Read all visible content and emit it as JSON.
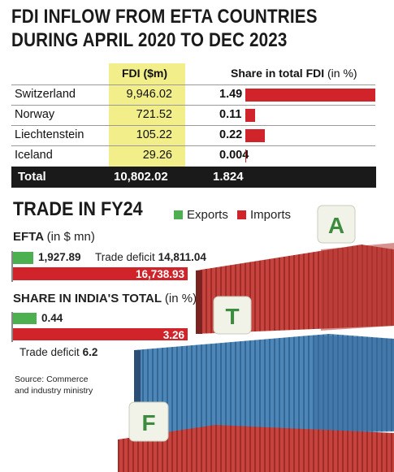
{
  "title_line1": "FDI INFLOW FROM EFTA COUNTRIES",
  "title_line2": "DURING APRIL 2020 TO DEC 2023",
  "table": {
    "col_fdi": "FDI ($m)",
    "col_share": "Share in total FDI",
    "col_share_unit": "(in %)",
    "rows": [
      {
        "country": "Switzerland",
        "fdi": "9,946.02",
        "share": "1.49"
      },
      {
        "country": "Norway",
        "fdi": "721.52",
        "share": "0.11"
      },
      {
        "country": "Liechtenstein",
        "fdi": "105.22",
        "share": "0.22"
      },
      {
        "country": "Iceland",
        "fdi": "29.26",
        "share": "0.004"
      }
    ],
    "total": {
      "label": "Total",
      "fdi": "10,802.02",
      "share": "1.824"
    }
  },
  "trade": {
    "heading": "TRADE IN FY24",
    "legend_exports": "Exports",
    "legend_imports": "Imports",
    "efta_label": "EFTA",
    "efta_unit": "(in $ mn)",
    "efta_exports": "1,927.89",
    "efta_imports": "16,738.93",
    "efta_deficit_label": "Trade deficit",
    "efta_deficit_value": "14,811.04",
    "share_label": "SHARE IN INDIA'S TOTAL",
    "share_unit": "(in %)",
    "share_exports": "0.44",
    "share_imports": "3.26",
    "share_deficit_label": "Trade deficit",
    "share_deficit_value": "6.2"
  },
  "source_line1": "Source: Commerce",
  "source_line2": "and industry ministry",
  "photo_letters": {
    "top": "A",
    "middle": "T",
    "bottom": "F"
  },
  "colors": {
    "exports": "#4caf50",
    "imports": "#d0232a",
    "fdi_highlight": "#f2ef8a",
    "total_bg": "#1a1a1a"
  },
  "chart_data": [
    {
      "type": "table",
      "title": "FDI INFLOW FROM EFTA COUNTRIES DURING APRIL 2020 TO DEC 2023",
      "columns": [
        "FDI ($m)",
        "Share in total FDI (in %)"
      ],
      "categories": [
        "Switzerland",
        "Norway",
        "Liechtenstein",
        "Iceland",
        "Total"
      ],
      "series": [
        {
          "name": "FDI ($m)",
          "values": [
            9946.02,
            721.52,
            105.22,
            29.26,
            10802.02
          ]
        },
        {
          "name": "Share in total FDI (in %)",
          "values": [
            1.49,
            0.11,
            0.22,
            0.004,
            1.824
          ]
        }
      ]
    },
    {
      "type": "bar",
      "title": "EFTA (in $ mn)",
      "categories": [
        "EFTA"
      ],
      "series": [
        {
          "name": "Exports",
          "values": [
            1927.89
          ]
        },
        {
          "name": "Imports",
          "values": [
            16738.93
          ]
        }
      ],
      "annotations": [
        "Trade deficit 14,811.04"
      ]
    },
    {
      "type": "bar",
      "title": "SHARE IN INDIA'S TOTAL (in %)",
      "categories": [
        "Share"
      ],
      "series": [
        {
          "name": "Exports",
          "values": [
            0.44
          ]
        },
        {
          "name": "Imports",
          "values": [
            3.26
          ]
        }
      ],
      "annotations": [
        "Trade deficit 6.2"
      ]
    }
  ]
}
